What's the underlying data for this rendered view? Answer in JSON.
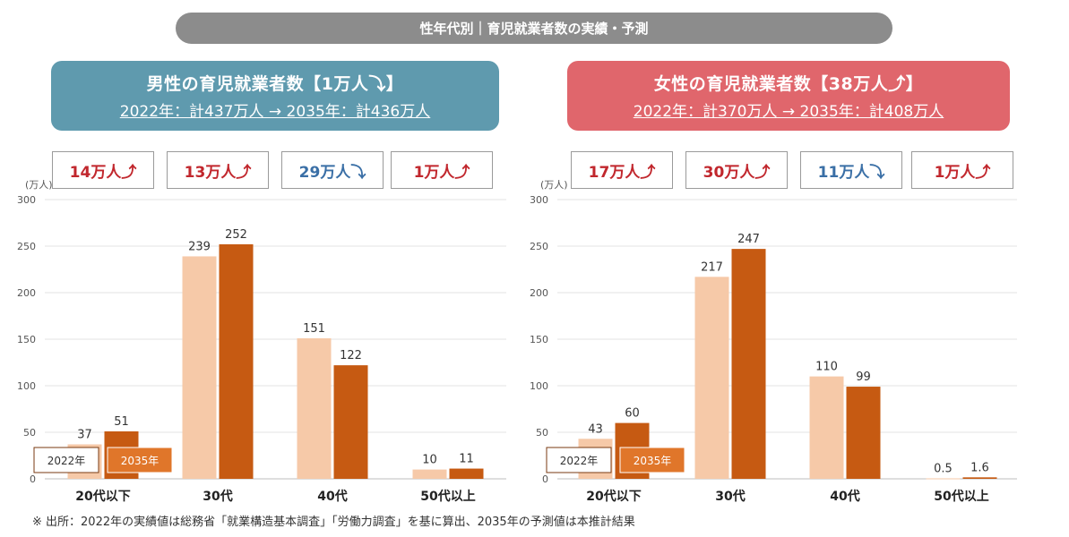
{
  "header": {
    "title": "性年代別｜育児就業者数の実績・予測"
  },
  "male": {
    "title": "男性の育児就業者数【1万人⤵】",
    "subtitle": "2022年：計437万人 → 2035年：計436万人",
    "deltas": [
      {
        "text": "14万人⤴",
        "dir": "up"
      },
      {
        "text": "13万人⤴",
        "dir": "up"
      },
      {
        "text": "29万人⤵",
        "dir": "down"
      },
      {
        "text": "1万人⤴",
        "dir": "up"
      }
    ]
  },
  "female": {
    "title": "女性の育児就業者数【38万人⤴】",
    "subtitle": "2022年：計370万人 → 2035年：計408万人",
    "deltas": [
      {
        "text": "17万人⤴",
        "dir": "up"
      },
      {
        "text": "30万人⤴",
        "dir": "up"
      },
      {
        "text": "11万人⤵",
        "dir": "down"
      },
      {
        "text": "1万人⤴",
        "dir": "up"
      }
    ]
  },
  "colors": {
    "y2022": "#f6c9a8",
    "y2035": "#c65a12",
    "grid": "#e3e3e3",
    "axis_text": "#555555"
  },
  "chart_data": [
    {
      "type": "bar",
      "unit_label": "(万人)",
      "categories": [
        "20代以下",
        "30代",
        "40代",
        "50代以上"
      ],
      "series": [
        {
          "name": "2022年",
          "values": [
            37,
            239,
            151,
            10
          ]
        },
        {
          "name": "2035年",
          "values": [
            51,
            252,
            122,
            11
          ]
        }
      ],
      "yticks": [
        0,
        50,
        100,
        150,
        200,
        250,
        300
      ],
      "ylim": [
        0,
        300
      ],
      "grid": true,
      "legend": "bottom-left"
    },
    {
      "type": "bar",
      "unit_label": "(万人)",
      "categories": [
        "20代以下",
        "30代",
        "40代",
        "50代以上"
      ],
      "series": [
        {
          "name": "2022年",
          "values": [
            43,
            217,
            110,
            0.5
          ]
        },
        {
          "name": "2035年",
          "values": [
            60,
            247,
            99,
            1.6
          ]
        }
      ],
      "yticks": [
        0,
        50,
        100,
        150,
        200,
        250,
        300
      ],
      "ylim": [
        0,
        300
      ],
      "grid": true,
      "legend": "bottom-left"
    }
  ],
  "footnote": "※ 出所：2022年の実績値は総務省「就業構造基本調査」「労働力調査」を基に算出、2035年の予測値は本推計結果"
}
